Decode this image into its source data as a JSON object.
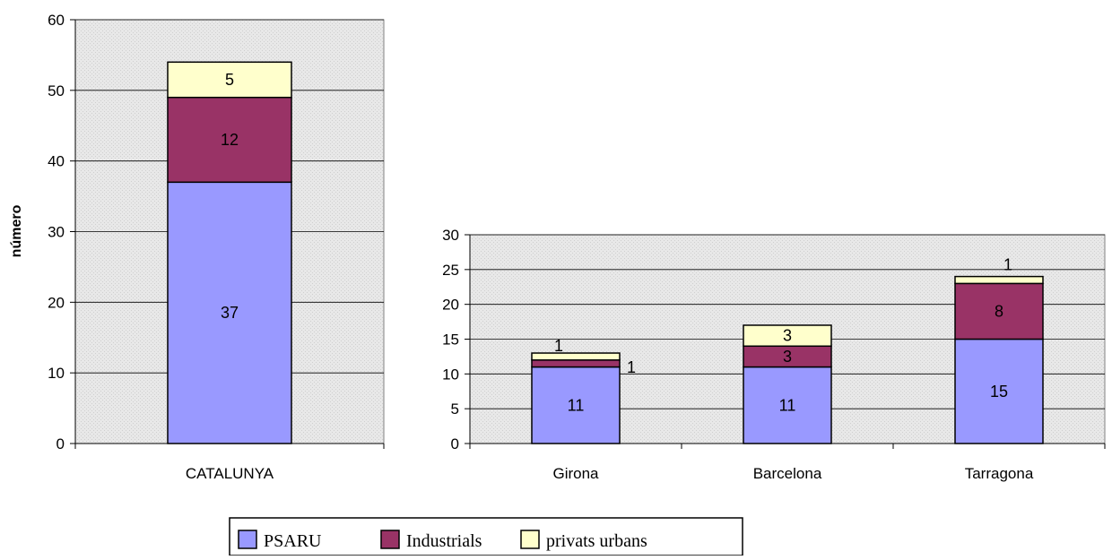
{
  "colors": {
    "PSARU": "#9999ff",
    "Industrials": "#993366",
    "privats urbans": "#ffffcc",
    "plot_background": "#e4e4e4"
  },
  "chart_data": [
    {
      "type": "bar",
      "stacked": true,
      "ylabel": "número",
      "categories": [
        "CATALUNYA"
      ],
      "ylim": [
        0,
        60
      ],
      "yticks": [
        0,
        10,
        20,
        30,
        40,
        50,
        60
      ],
      "series": [
        {
          "name": "PSARU",
          "values": [
            37
          ]
        },
        {
          "name": "Industrials",
          "values": [
            12
          ]
        },
        {
          "name": "privats urbans",
          "values": [
            5
          ]
        }
      ],
      "grid": true
    },
    {
      "type": "bar",
      "stacked": true,
      "categories": [
        "Girona",
        "Barcelona",
        "Tarragona"
      ],
      "ylim": [
        0,
        30
      ],
      "yticks": [
        0,
        5,
        10,
        15,
        20,
        25,
        30
      ],
      "series": [
        {
          "name": "PSARU",
          "values": [
            11,
            11,
            15
          ]
        },
        {
          "name": "Industrials",
          "values": [
            1,
            3,
            8
          ]
        },
        {
          "name": "privats urbans",
          "values": [
            1,
            3,
            1
          ]
        }
      ],
      "grid": true
    }
  ],
  "legend": {
    "position": "bottom",
    "items": [
      "PSARU",
      "Industrials",
      "privats urbans"
    ]
  }
}
